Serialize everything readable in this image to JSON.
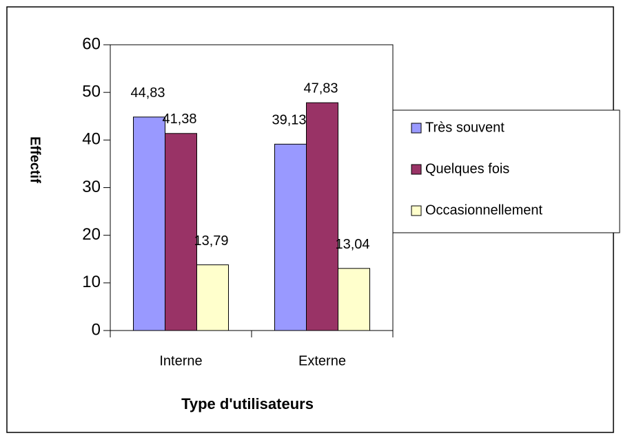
{
  "chart_data": {
    "type": "bar",
    "x_label": "Type d'utilisateurs",
    "y_label": "Effectif",
    "categories": [
      "Interne",
      "Externe"
    ],
    "series": [
      {
        "name": "Très souvent",
        "color": "#9999ff",
        "values": [
          44.83,
          39.13
        ],
        "value_labels": [
          "44,83",
          "39,13"
        ]
      },
      {
        "name": "Quelques fois",
        "color": "#993366",
        "values": [
          41.38,
          47.83
        ],
        "value_labels": [
          "41,38",
          "47,83"
        ]
      },
      {
        "name": "Occasionnellement",
        "color": "#ffffcc",
        "values": [
          13.79,
          13.04
        ],
        "value_labels": [
          "13,79",
          "13,04"
        ]
      }
    ],
    "ylim": [
      0,
      60
    ],
    "yticks": [
      0,
      10,
      20,
      30,
      40,
      50,
      60
    ],
    "grid": false,
    "legend": "right"
  }
}
